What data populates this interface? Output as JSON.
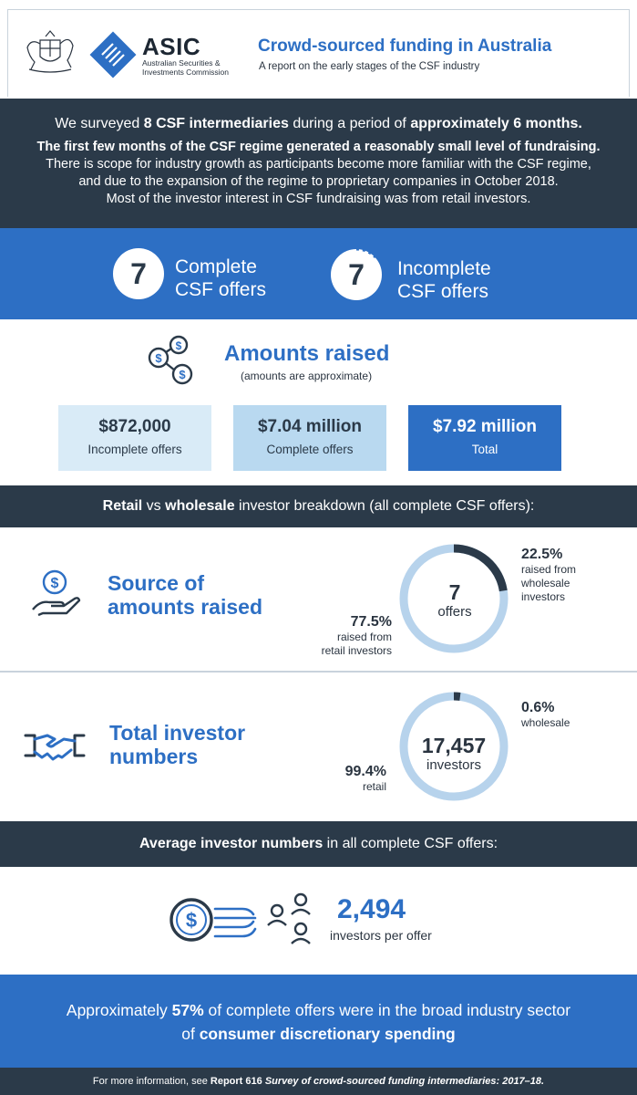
{
  "header": {
    "org_short": "ASIC",
    "org_full_line1": "Australian Securities &",
    "org_full_line2": "Investments Commission",
    "title": "Crowd-sourced funding in Australia",
    "subtitle": "A report on the early stages of the CSF industry"
  },
  "intro": {
    "line1_a": "We surveyed ",
    "line1_b": "8 CSF intermediaries",
    "line1_c": " during a period of ",
    "line1_d": "approximately 6 months.",
    "line2": "The first few months of the CSF regime generated a reasonably small level of fundraising.",
    "line3": "There is scope for industry growth as participants become more familiar with the CSF regime,",
    "line4": "and due to the expansion of the regime to proprietary companies in October 2018.",
    "line5": "Most of the investor interest in CSF fundraising was from retail investors."
  },
  "offers": {
    "complete_count": "7",
    "complete_line1": "Complete",
    "complete_line2": "CSF offers",
    "incomplete_count": "7",
    "incomplete_line1": "Incomplete",
    "incomplete_line2": "CSF offers"
  },
  "amounts": {
    "title": "Amounts raised",
    "subtitle": "(amounts are approximate)",
    "boxes": [
      {
        "value": "$872,000",
        "label": "Incomplete offers"
      },
      {
        "value": "$7.04 million",
        "label": "Complete offers"
      },
      {
        "value": "$7.92 million",
        "label": "Total"
      }
    ]
  },
  "retail_band": {
    "a": "Retail",
    "b": " vs ",
    "c": "wholesale",
    "d": " investor breakdown (all complete CSF offers):"
  },
  "source": {
    "title_line1": "Source of",
    "title_line2": "amounts raised",
    "center_num": "7",
    "center_txt": "offers",
    "wholesale_pct": "22.5%",
    "wholesale_l1": "raised from",
    "wholesale_l2": "wholesale",
    "wholesale_l3": "investors",
    "retail_pct": "77.5%",
    "retail_l1": "raised from",
    "retail_l2": "retail investors"
  },
  "investors": {
    "title_line1": "Total investor",
    "title_line2": "numbers",
    "center_num": "17,457",
    "center_txt": "investors",
    "wholesale_pct": "0.6%",
    "wholesale_l1": "wholesale",
    "retail_pct": "99.4%",
    "retail_l1": "retail"
  },
  "average": {
    "band_a": "Average investor numbers",
    "band_b": " in all complete CSF offers:",
    "value": "2,494",
    "label": "investors per offer"
  },
  "sector": {
    "a": "Approximately ",
    "b": "57%",
    "c": " of complete offers were in the broad industry sector",
    "d": "of ",
    "e": "consumer discretionary spending"
  },
  "footer": {
    "a": "For more information, see ",
    "b": "Report 616",
    "c": "Survey of crowd-sourced funding intermediaries: 2017–18."
  },
  "chart_data": [
    {
      "type": "pie",
      "categories": [
        "raised from wholesale investors",
        "raised from retail investors"
      ],
      "values": [
        22.5,
        77.5
      ],
      "title": "Source of amounts raised"
    },
    {
      "type": "pie",
      "categories": [
        "wholesale",
        "retail"
      ],
      "values": [
        0.6,
        99.4
      ],
      "title": "Total investor numbers"
    }
  ],
  "colors": {
    "accent_blue": "#2d6fc4",
    "dark_navy": "#2b3a49",
    "light_ring": "#b7d3ec",
    "box_light": "#d9ebf7",
    "box_mid": "#b9d9f0"
  }
}
